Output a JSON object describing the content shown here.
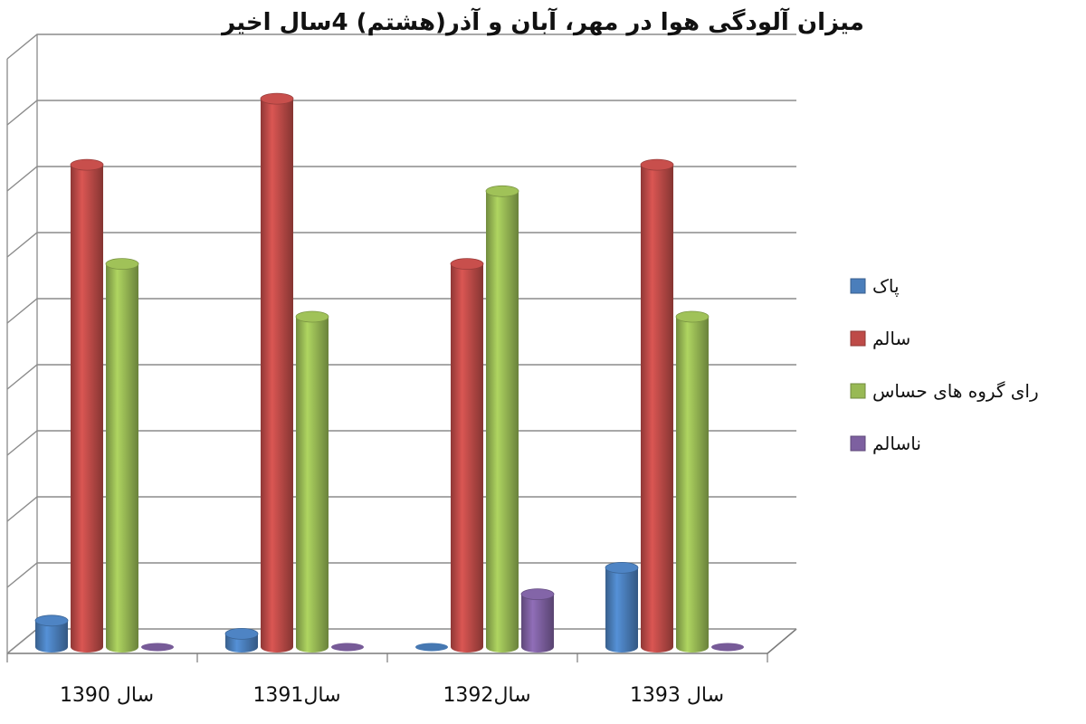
{
  "chart_data": {
    "type": "bar",
    "title": "میزان آلودگی هوا در مهر، آبان و آذر(هشتم) 4سال اخیر",
    "xlabel": "",
    "ylabel": "",
    "ylim": [
      0,
      9
    ],
    "grid": true,
    "legend_position": "right",
    "categories": [
      "سال 1390",
      "سال1391",
      "سال1392",
      "سال 1393"
    ],
    "series": [
      {
        "name": "پاک",
        "color": "#4a7ebb",
        "values": [
          0.4,
          0.2,
          0.0,
          1.2
        ]
      },
      {
        "name": "سالم",
        "color": "#be4b48",
        "values": [
          7.3,
          8.3,
          5.8,
          7.3
        ]
      },
      {
        "name": "رای گروه های حساس",
        "color": "#98b954",
        "values": [
          5.8,
          5.0,
          6.9,
          5.0
        ]
      },
      {
        "name": "ناسالم",
        "color": "#7d60a0",
        "values": [
          0.0,
          0.0,
          0.8,
          0.0
        ]
      }
    ]
  }
}
